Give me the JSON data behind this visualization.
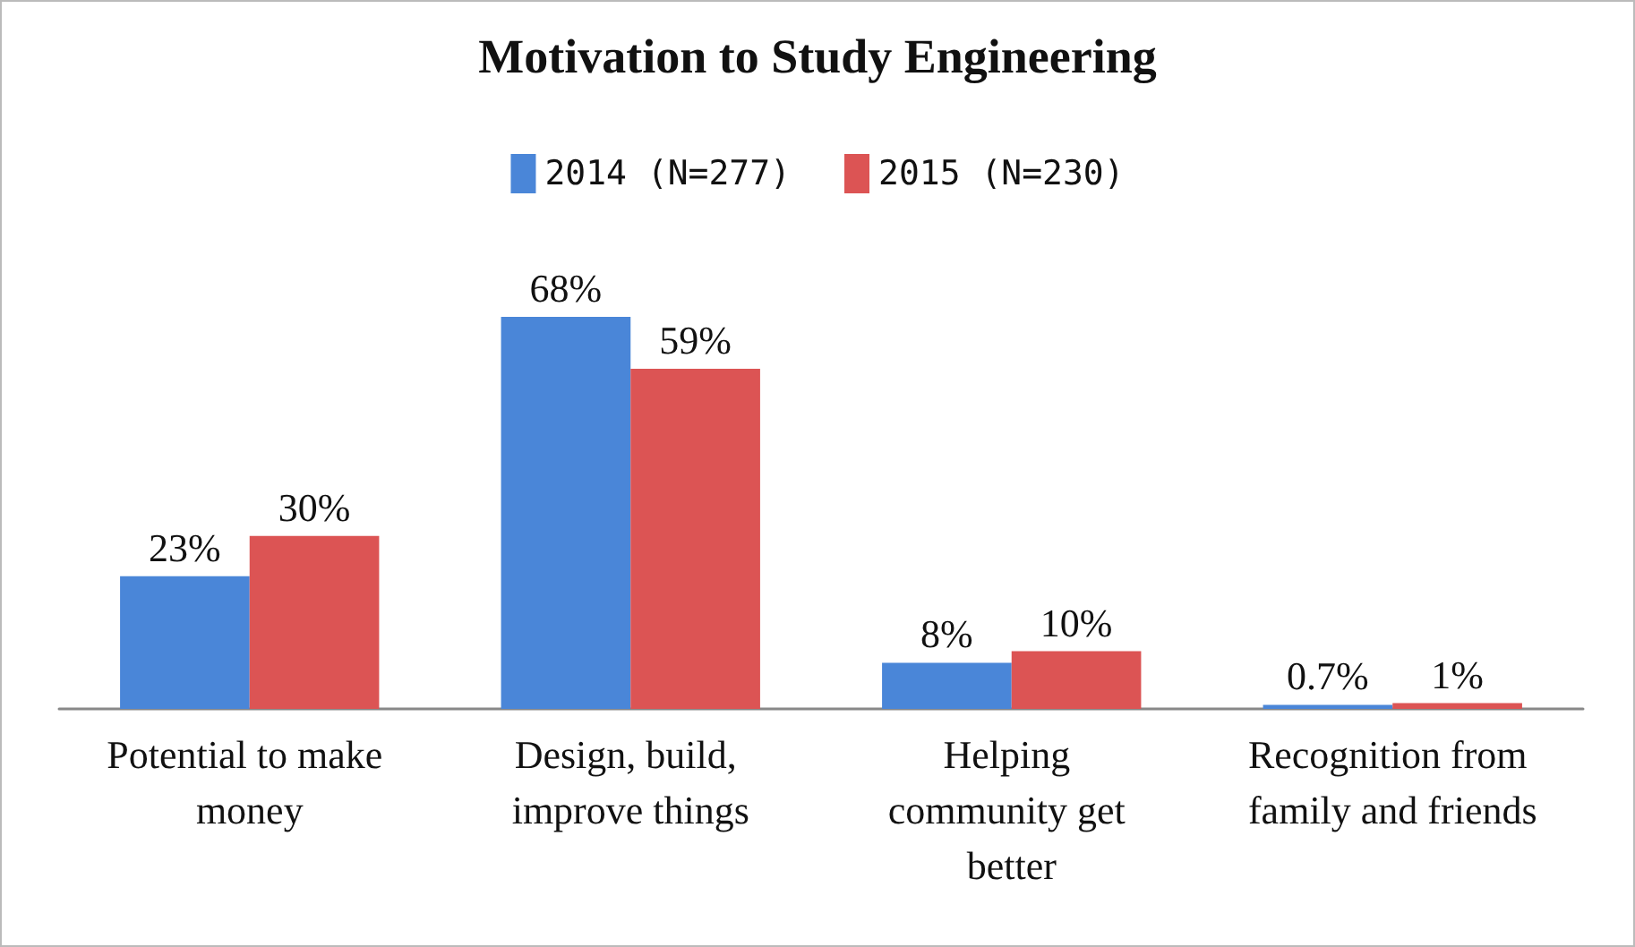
{
  "chart_data": {
    "type": "bar",
    "title": "Motivation to Study Engineering",
    "categories": [
      "Potential to make money",
      "Design, build, improve things",
      "Helping community get better",
      "Recognition from family and friends"
    ],
    "series": [
      {
        "name": "2014 (N=277)",
        "color": "#4a86d8",
        "values": [
          23,
          68,
          8,
          0.7
        ],
        "value_labels": [
          "23%",
          "68%",
          "8%",
          "0.7%"
        ]
      },
      {
        "name": "2015 (N=230)",
        "color": "#dc5454",
        "values": [
          30,
          59,
          10,
          1
        ],
        "value_labels": [
          "30%",
          "59%",
          "10%",
          "1%"
        ]
      }
    ],
    "legend": "top",
    "tick_labels": "x"
  }
}
